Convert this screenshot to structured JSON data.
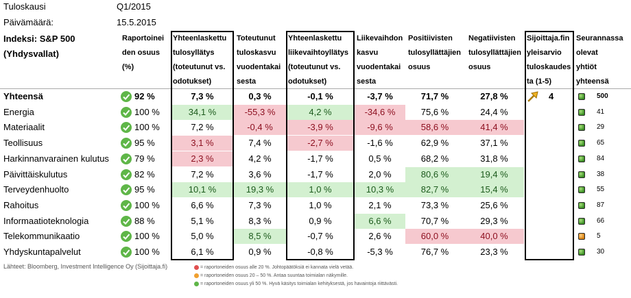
{
  "meta": {
    "period_label": "Tuloskausi",
    "period_value": "Q1/2015",
    "date_label": "Päivämäärä:",
    "date_value": "15.5.2015"
  },
  "headers": {
    "index": [
      "Indeksi: S&P 500",
      "(Yhdysvallat)"
    ],
    "report_share": [
      "Raportoinei",
      "den osuus",
      "(%)"
    ],
    "agg_earnings_surprise": [
      "Yhteenlaskettu",
      "tulosyllätys",
      "(toteutunut vs.",
      "odotukset)"
    ],
    "realized_earnings_growth": [
      "Toteutunut",
      "tuloskasvu",
      "vuodentakai",
      "sesta"
    ],
    "agg_revenue_surprise": [
      "Yhteenlaskettu",
      "liikevaihtoyllätys",
      "(toteutunut vs.",
      "odotukset)"
    ],
    "revenue_growth": [
      "Liikevaihdon",
      "kasvu",
      "vuodentakai",
      "sesta"
    ],
    "positive_surprisers": [
      "Positiivisten",
      "tulosyllättäjien",
      "osuus"
    ],
    "negative_surprisers": [
      "Negatiivisten",
      "tulosyllättäjien",
      "osuus"
    ],
    "sijoittaja_estimate": [
      "Sijoittaja.fin",
      "yleisarvio",
      "tuloskaudes",
      "ta (1-5)"
    ],
    "tracked_companies": [
      "Seurannassa",
      "olevat",
      "yhtiöt",
      "yhteensä"
    ]
  },
  "rows": [
    {
      "name": "Yhteensä",
      "pct": "92 %",
      "eps": "7,3 %",
      "grow": "0,3 %",
      "rev": "-0,1 %",
      "revg": "-3,7 %",
      "pos": "71,7 %",
      "neg": "27,8 %",
      "count": "500",
      "status": "green"
    },
    {
      "name": "Energia",
      "pct": "100 %",
      "eps": "34,1 %",
      "grow": "-55,3 %",
      "rev": "4,2 %",
      "revg": "-34,6 %",
      "pos": "75,6 %",
      "neg": "24,4 %",
      "count": "41",
      "status": "green"
    },
    {
      "name": "Materiaalit",
      "pct": "100 %",
      "eps": "7,2 %",
      "grow": "-0,4 %",
      "rev": "-3,9 %",
      "revg": "-9,6 %",
      "pos": "58,6 %",
      "neg": "41,4 %",
      "count": "29",
      "status": "green"
    },
    {
      "name": "Teollisuus",
      "pct": "95 %",
      "eps": "3,1 %",
      "grow": "7,4 %",
      "rev": "-2,7 %",
      "revg": "-1,6 %",
      "pos": "62,9 %",
      "neg": "37,1 %",
      "count": "65",
      "status": "green"
    },
    {
      "name": "Harkinnanvarainen kulutus",
      "pct": "79 %",
      "eps": "2,3 %",
      "grow": "4,2 %",
      "rev": "-1,7 %",
      "revg": "0,5 %",
      "pos": "68,2 %",
      "neg": "31,8 %",
      "count": "84",
      "status": "green"
    },
    {
      "name": "Päivittäiskulutus",
      "pct": "82 %",
      "eps": "7,2 %",
      "grow": "3,6 %",
      "rev": "-1,7 %",
      "revg": "2,0 %",
      "pos": "80,6 %",
      "neg": "19,4 %",
      "count": "38",
      "status": "green"
    },
    {
      "name": "Terveydenhuolto",
      "pct": "95 %",
      "eps": "10,1 %",
      "grow": "19,3 %",
      "rev": "1,0 %",
      "revg": "10,3 %",
      "pos": "82,7 %",
      "neg": "15,4 %",
      "count": "55",
      "status": "green"
    },
    {
      "name": "Rahoitus",
      "pct": "100 %",
      "eps": "6,6 %",
      "grow": "7,3 %",
      "rev": "1,0 %",
      "revg": "2,1 %",
      "pos": "73,3 %",
      "neg": "25,6 %",
      "count": "87",
      "status": "green"
    },
    {
      "name": "Informaatioteknologia",
      "pct": "88 %",
      "eps": "5,1 %",
      "grow": "8,3 %",
      "rev": "0,9 %",
      "revg": "6,6 %",
      "pos": "70,7 %",
      "neg": "29,3 %",
      "count": "66",
      "status": "green"
    },
    {
      "name": "Telekommunikaatio",
      "pct": "100 %",
      "eps": "5,0 %",
      "grow": "8,5 %",
      "rev": "-0,7 %",
      "revg": "2,6 %",
      "pos": "60,0 %",
      "neg": "40,0 %",
      "count": "5",
      "status": "orange"
    },
    {
      "name": "Yhdyskuntapalvelut",
      "pct": "100 %",
      "eps": "6,1 %",
      "grow": "0,9 %",
      "rev": "-0,8 %",
      "revg": "-5,3 %",
      "pos": "76,7 %",
      "neg": "23,3 %",
      "count": "30",
      "status": "green"
    }
  ],
  "highlights": {
    "green": [
      "r1-eps",
      "r1-rev",
      "r5-pos",
      "r5-neg",
      "r6-eps",
      "r6-grow",
      "r6-rev",
      "r6-revg",
      "r6-pos",
      "r6-neg",
      "r8-revg",
      "r9-grow"
    ],
    "red": [
      "r1-grow",
      "r1-revg",
      "r2-grow",
      "r2-rev",
      "r2-revg",
      "r2-pos",
      "r2-neg",
      "r3-eps",
      "r3-rev",
      "r4-eps",
      "r9-pos",
      "r9-neg"
    ]
  },
  "estimate": {
    "score": "4",
    "icon": "arrow-up-right-icon",
    "color": "#f2b322"
  },
  "colors": {
    "green_fill": "#d3f0d0",
    "red_fill": "#f6c9cf",
    "check_green": "#5fb648",
    "status_orange": "#d77f0f"
  },
  "footer": {
    "sources": "Lähteet: Bloomberg, Investment Intelligence Oy (Sijoittaja.fi)",
    "legend": [
      {
        "color": "red",
        "text": "= raportoneiden osuus alle 20 %. Johtopäätöksiä ei kannata vielä vetää."
      },
      {
        "color": "orange",
        "text": "= raportoneiden osuus 20 – 50 %. Antaa suuntaa toimialan näkymille."
      },
      {
        "color": "green",
        "text": "= raportoneiden osuus yli 50 %. Hyvä käsitys toimialan kehityksestä, jos havaintoja riittävästi."
      }
    ]
  }
}
